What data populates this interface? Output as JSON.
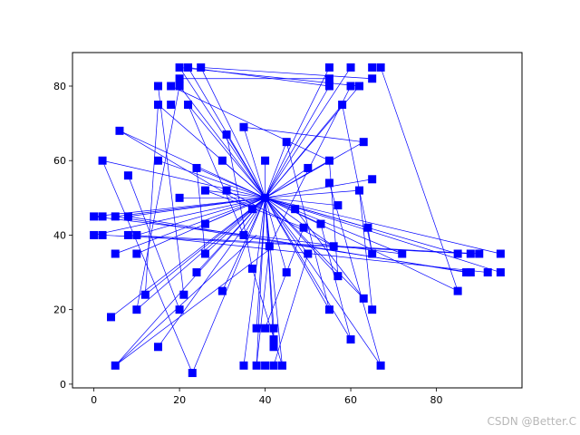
{
  "chart_data": {
    "type": "scatter",
    "title": "",
    "xlabel": "",
    "ylabel": "",
    "xlim": [
      -5,
      100
    ],
    "ylim": [
      -1,
      89
    ],
    "xticks": [
      0,
      20,
      40,
      60,
      80
    ],
    "yticks": [
      0,
      20,
      40,
      60,
      80
    ],
    "grid": false,
    "marker": "square",
    "colors": {
      "series": "#0000ff",
      "axis": "#000000",
      "background": "#ffffff"
    },
    "hub": [
      40,
      50
    ],
    "points": [
      [
        20,
        85
      ],
      [
        22,
        85
      ],
      [
        25,
        85
      ],
      [
        15,
        80
      ],
      [
        18,
        80
      ],
      [
        20,
        80
      ],
      [
        20,
        82
      ],
      [
        15,
        75
      ],
      [
        18,
        75
      ],
      [
        22,
        75
      ],
      [
        55,
        85
      ],
      [
        60,
        85
      ],
      [
        65,
        85
      ],
      [
        67,
        85
      ],
      [
        55,
        82
      ],
      [
        55,
        80
      ],
      [
        60,
        80
      ],
      [
        62,
        80
      ],
      [
        65,
        82
      ],
      [
        58,
        75
      ],
      [
        6,
        68
      ],
      [
        2,
        60
      ],
      [
        15,
        60
      ],
      [
        8,
        56
      ],
      [
        24,
        58
      ],
      [
        35,
        69
      ],
      [
        31,
        67
      ],
      [
        30,
        60
      ],
      [
        40,
        60
      ],
      [
        45,
        65
      ],
      [
        50,
        58
      ],
      [
        55,
        60
      ],
      [
        63,
        65
      ],
      [
        65,
        55
      ],
      [
        55,
        54
      ],
      [
        62,
        52
      ],
      [
        20,
        50
      ],
      [
        26,
        52
      ],
      [
        31,
        52
      ],
      [
        47,
        47
      ],
      [
        57,
        48
      ],
      [
        37,
        47
      ],
      [
        0,
        45
      ],
      [
        2,
        45
      ],
      [
        5,
        45
      ],
      [
        8,
        45
      ],
      [
        26,
        43
      ],
      [
        53,
        43
      ],
      [
        49,
        42
      ],
      [
        64,
        42
      ],
      [
        0,
        40
      ],
      [
        2,
        40
      ],
      [
        8,
        40
      ],
      [
        10,
        40
      ],
      [
        35,
        40
      ],
      [
        41,
        37
      ],
      [
        56,
        37
      ],
      [
        5,
        35
      ],
      [
        10,
        35
      ],
      [
        26,
        35
      ],
      [
        50,
        35
      ],
      [
        65,
        35
      ],
      [
        72,
        35
      ],
      [
        85,
        35
      ],
      [
        88,
        35
      ],
      [
        90,
        35
      ],
      [
        95,
        35
      ],
      [
        24,
        30
      ],
      [
        37,
        31
      ],
      [
        45,
        30
      ],
      [
        57,
        29
      ],
      [
        87,
        30
      ],
      [
        88,
        30
      ],
      [
        92,
        30
      ],
      [
        95,
        30
      ],
      [
        12,
        24
      ],
      [
        21,
        24
      ],
      [
        30,
        25
      ],
      [
        63,
        23
      ],
      [
        85,
        25
      ],
      [
        10,
        20
      ],
      [
        20,
        20
      ],
      [
        55,
        20
      ],
      [
        65,
        20
      ],
      [
        4,
        18
      ],
      [
        15,
        10
      ],
      [
        38,
        15
      ],
      [
        40,
        15
      ],
      [
        42,
        15
      ],
      [
        60,
        12
      ],
      [
        42,
        12
      ],
      [
        42,
        10
      ],
      [
        5,
        5
      ],
      [
        23,
        3
      ],
      [
        35,
        5
      ],
      [
        38,
        5
      ],
      [
        40,
        5
      ],
      [
        42,
        5
      ],
      [
        44,
        5
      ],
      [
        67,
        5
      ]
    ],
    "segments": [
      [
        [
          40,
          50
        ],
        [
          20,
          85
        ]
      ],
      [
        [
          40,
          50
        ],
        [
          22,
          85
        ]
      ],
      [
        [
          40,
          50
        ],
        [
          25,
          85
        ]
      ],
      [
        [
          40,
          50
        ],
        [
          20,
          80
        ]
      ],
      [
        [
          40,
          50
        ],
        [
          22,
          75
        ]
      ],
      [
        [
          40,
          50
        ],
        [
          15,
          75
        ]
      ],
      [
        [
          40,
          50
        ],
        [
          55,
          85
        ]
      ],
      [
        [
          40,
          50
        ],
        [
          60,
          85
        ]
      ],
      [
        [
          40,
          50
        ],
        [
          55,
          80
        ]
      ],
      [
        [
          40,
          50
        ],
        [
          62,
          80
        ]
      ],
      [
        [
          40,
          50
        ],
        [
          58,
          75
        ]
      ],
      [
        [
          40,
          50
        ],
        [
          6,
          68
        ]
      ],
      [
        [
          40,
          50
        ],
        [
          2,
          60
        ]
      ],
      [
        [
          40,
          50
        ],
        [
          15,
          60
        ]
      ],
      [
        [
          40,
          50
        ],
        [
          24,
          58
        ]
      ],
      [
        [
          40,
          50
        ],
        [
          35,
          69
        ]
      ],
      [
        [
          40,
          50
        ],
        [
          31,
          67
        ]
      ],
      [
        [
          40,
          50
        ],
        [
          30,
          60
        ]
      ],
      [
        [
          40,
          50
        ],
        [
          40,
          60
        ]
      ],
      [
        [
          40,
          50
        ],
        [
          45,
          65
        ]
      ],
      [
        [
          40,
          50
        ],
        [
          50,
          58
        ]
      ],
      [
        [
          40,
          50
        ],
        [
          55,
          60
        ]
      ],
      [
        [
          40,
          50
        ],
        [
          63,
          65
        ]
      ],
      [
        [
          40,
          50
        ],
        [
          65,
          55
        ]
      ],
      [
        [
          40,
          50
        ],
        [
          62,
          52
        ]
      ],
      [
        [
          40,
          50
        ],
        [
          20,
          50
        ]
      ],
      [
        [
          40,
          50
        ],
        [
          26,
          52
        ]
      ],
      [
        [
          40,
          50
        ],
        [
          47,
          47
        ]
      ],
      [
        [
          40,
          50
        ],
        [
          57,
          48
        ]
      ],
      [
        [
          40,
          50
        ],
        [
          37,
          47
        ]
      ],
      [
        [
          40,
          50
        ],
        [
          0,
          45
        ]
      ],
      [
        [
          40,
          50
        ],
        [
          5,
          45
        ]
      ],
      [
        [
          40,
          50
        ],
        [
          8,
          45
        ]
      ],
      [
        [
          40,
          50
        ],
        [
          26,
          43
        ]
      ],
      [
        [
          40,
          50
        ],
        [
          53,
          43
        ]
      ],
      [
        [
          40,
          50
        ],
        [
          64,
          42
        ]
      ],
      [
        [
          40,
          50
        ],
        [
          0,
          40
        ]
      ],
      [
        [
          40,
          50
        ],
        [
          10,
          40
        ]
      ],
      [
        [
          40,
          50
        ],
        [
          35,
          40
        ]
      ],
      [
        [
          40,
          50
        ],
        [
          41,
          37
        ]
      ],
      [
        [
          40,
          50
        ],
        [
          56,
          37
        ]
      ],
      [
        [
          40,
          50
        ],
        [
          5,
          35
        ]
      ],
      [
        [
          40,
          50
        ],
        [
          10,
          35
        ]
      ],
      [
        [
          40,
          50
        ],
        [
          26,
          35
        ]
      ],
      [
        [
          40,
          50
        ],
        [
          50,
          35
        ]
      ],
      [
        [
          40,
          50
        ],
        [
          72,
          35
        ]
      ],
      [
        [
          40,
          50
        ],
        [
          85,
          35
        ]
      ],
      [
        [
          40,
          50
        ],
        [
          95,
          35
        ]
      ],
      [
        [
          40,
          50
        ],
        [
          24,
          30
        ]
      ],
      [
        [
          40,
          50
        ],
        [
          45,
          30
        ]
      ],
      [
        [
          40,
          50
        ],
        [
          57,
          29
        ]
      ],
      [
        [
          40,
          50
        ],
        [
          95,
          30
        ]
      ],
      [
        [
          40,
          50
        ],
        [
          12,
          24
        ]
      ],
      [
        [
          40,
          50
        ],
        [
          30,
          25
        ]
      ],
      [
        [
          40,
          50
        ],
        [
          63,
          23
        ]
      ],
      [
        [
          40,
          50
        ],
        [
          85,
          25
        ]
      ],
      [
        [
          40,
          50
        ],
        [
          10,
          20
        ]
      ],
      [
        [
          40,
          50
        ],
        [
          55,
          20
        ]
      ],
      [
        [
          40,
          50
        ],
        [
          4,
          18
        ]
      ],
      [
        [
          40,
          50
        ],
        [
          15,
          10
        ]
      ],
      [
        [
          40,
          50
        ],
        [
          38,
          15
        ]
      ],
      [
        [
          40,
          50
        ],
        [
          42,
          15
        ]
      ],
      [
        [
          40,
          50
        ],
        [
          60,
          12
        ]
      ],
      [
        [
          40,
          50
        ],
        [
          42,
          10
        ]
      ],
      [
        [
          40,
          50
        ],
        [
          5,
          5
        ]
      ],
      [
        [
          40,
          50
        ],
        [
          23,
          3
        ]
      ],
      [
        [
          40,
          50
        ],
        [
          35,
          5
        ]
      ],
      [
        [
          40,
          50
        ],
        [
          38,
          5
        ]
      ],
      [
        [
          40,
          50
        ],
        [
          44,
          5
        ]
      ],
      [
        [
          40,
          50
        ],
        [
          67,
          5
        ]
      ],
      [
        [
          20,
          85
        ],
        [
          62,
          80
        ]
      ],
      [
        [
          25,
          85
        ],
        [
          65,
          82
        ]
      ],
      [
        [
          20,
          82
        ],
        [
          55,
          82
        ]
      ],
      [
        [
          22,
          85
        ],
        [
          55,
          80
        ]
      ],
      [
        [
          18,
          80
        ],
        [
          55,
          60
        ]
      ],
      [
        [
          15,
          80
        ],
        [
          21,
          24
        ]
      ],
      [
        [
          15,
          75
        ],
        [
          12,
          24
        ]
      ],
      [
        [
          22,
          75
        ],
        [
          35,
          40
        ]
      ],
      [
        [
          20,
          80
        ],
        [
          10,
          20
        ]
      ],
      [
        [
          2,
          60
        ],
        [
          23,
          3
        ]
      ],
      [
        [
          6,
          68
        ],
        [
          37,
          47
        ]
      ],
      [
        [
          8,
          56
        ],
        [
          20,
          20
        ]
      ],
      [
        [
          24,
          58
        ],
        [
          26,
          35
        ]
      ],
      [
        [
          31,
          67
        ],
        [
          37,
          31
        ]
      ],
      [
        [
          35,
          69
        ],
        [
          63,
          65
        ]
      ],
      [
        [
          58,
          75
        ],
        [
          65,
          35
        ]
      ],
      [
        [
          55,
          54
        ],
        [
          67,
          5
        ]
      ],
      [
        [
          62,
          52
        ],
        [
          65,
          20
        ]
      ],
      [
        [
          55,
          60
        ],
        [
          57,
          29
        ]
      ],
      [
        [
          53,
          43
        ],
        [
          60,
          12
        ]
      ],
      [
        [
          45,
          65
        ],
        [
          55,
          20
        ]
      ],
      [
        [
          47,
          47
        ],
        [
          63,
          23
        ]
      ],
      [
        [
          0,
          45
        ],
        [
          72,
          35
        ]
      ],
      [
        [
          2,
          40
        ],
        [
          88,
          35
        ]
      ],
      [
        [
          8,
          40
        ],
        [
          90,
          35
        ]
      ],
      [
        [
          10,
          40
        ],
        [
          92,
          30
        ]
      ],
      [
        [
          8,
          45
        ],
        [
          87,
          30
        ]
      ],
      [
        [
          5,
          45
        ],
        [
          88,
          30
        ]
      ],
      [
        [
          26,
          52
        ],
        [
          49,
          42
        ]
      ],
      [
        [
          31,
          52
        ],
        [
          56,
          37
        ]
      ],
      [
        [
          64,
          42
        ],
        [
          65,
          35
        ]
      ],
      [
        [
          5,
          5
        ],
        [
          42,
          37
        ]
      ],
      [
        [
          5,
          5
        ],
        [
          38,
          40
        ]
      ],
      [
        [
          40,
          15
        ],
        [
          49,
          42
        ]
      ],
      [
        [
          42,
          12
        ],
        [
          42,
          15
        ]
      ],
      [
        [
          42,
          5
        ],
        [
          50,
          35
        ]
      ],
      [
        [
          38,
          5
        ],
        [
          41,
          37
        ]
      ],
      [
        [
          44,
          5
        ],
        [
          37,
          31
        ]
      ],
      [
        [
          67,
          85
        ],
        [
          85,
          25
        ]
      ],
      [
        [
          60,
          80
        ],
        [
          41,
          37
        ]
      ]
    ]
  },
  "watermark": "CSDN @Better.C"
}
